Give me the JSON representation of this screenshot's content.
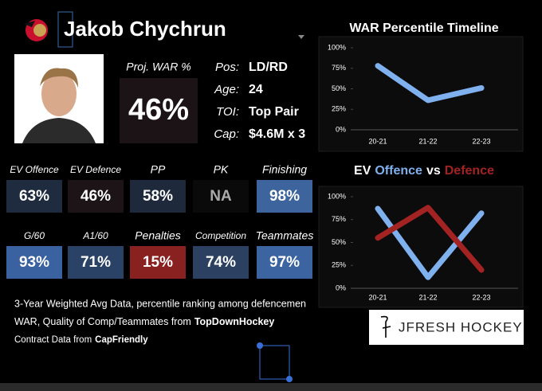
{
  "header": {
    "name": "Jakob Chychrun"
  },
  "summary": {
    "proj_war_label": "Proj. WAR %",
    "proj_war": "46%",
    "info": [
      {
        "label": "Pos:",
        "value": "LD/RD"
      },
      {
        "label": "Age:",
        "value": "24"
      },
      {
        "label": "TOI:",
        "value": "Top Pair"
      },
      {
        "label": "Cap:",
        "value": "$4.6M x 3"
      }
    ]
  },
  "tiles": [
    [
      {
        "label": "EV Offence",
        "value": "63%",
        "color": "#1f2c40"
      },
      {
        "label": "EV Defence",
        "value": "46%",
        "color": "#1c1417"
      },
      {
        "label": "PP",
        "value": "58%",
        "color": "#1e2a3b"
      },
      {
        "label": "PK",
        "value": "NA",
        "color": "#0a0a0a"
      },
      {
        "label": "Finishing",
        "value": "98%",
        "color": "#3d649c"
      }
    ],
    [
      {
        "label": "G/60",
        "value": "93%",
        "color": "#3b62a0"
      },
      {
        "label": "A1/60",
        "value": "71%",
        "color": "#2a4265"
      },
      {
        "label": "Penalties",
        "value": "15%",
        "color": "#8a2121"
      },
      {
        "label": "Competition",
        "value": "74%",
        "color": "#2c4162"
      },
      {
        "label": "Teammates",
        "value": "97%",
        "color": "#3c64a0"
      }
    ]
  ],
  "footer": {
    "line1": "3-Year Weighted Avg Data, percentile ranking among defencemen",
    "line2": "WAR, Quality of Comp/Teammates from",
    "line2_source": "TopDownHockey",
    "line3": "Contract Data from",
    "line3_source": "CapFriendly",
    "logo": "JFRESH HOCKEY"
  },
  "chart_data": [
    {
      "type": "line",
      "title": "WAR Percentile Timeline",
      "categories": [
        "20-21",
        "21-22",
        "22-23"
      ],
      "series": [
        {
          "name": "WAR",
          "color": "#7fb1ef",
          "values": [
            78,
            36,
            51
          ]
        }
      ],
      "ylim": [
        0,
        100
      ],
      "yticks": [
        {
          "value": 0,
          "label": "0%"
        },
        {
          "value": 25,
          "label": "25%"
        },
        {
          "value": 50,
          "label": "50%"
        },
        {
          "value": 75,
          "label": "75%"
        },
        {
          "value": 100,
          "label": "100%"
        }
      ]
    },
    {
      "type": "line",
      "title_prefix": "EV",
      "title_joiner": "vs",
      "categories": [
        "20-21",
        "21-22",
        "22-23"
      ],
      "series": [
        {
          "name": "Offence",
          "color": "#7fb1ef",
          "values": [
            87,
            12,
            82
          ]
        },
        {
          "name": "Defence",
          "color": "#a32222",
          "values": [
            55,
            88,
            20
          ]
        }
      ],
      "ylim": [
        0,
        100
      ],
      "yticks": [
        {
          "value": 0,
          "label": "0%"
        },
        {
          "value": 25,
          "label": "25%"
        },
        {
          "value": 50,
          "label": "50%"
        },
        {
          "value": 75,
          "label": "75%"
        },
        {
          "value": 100,
          "label": "100%"
        }
      ]
    }
  ]
}
